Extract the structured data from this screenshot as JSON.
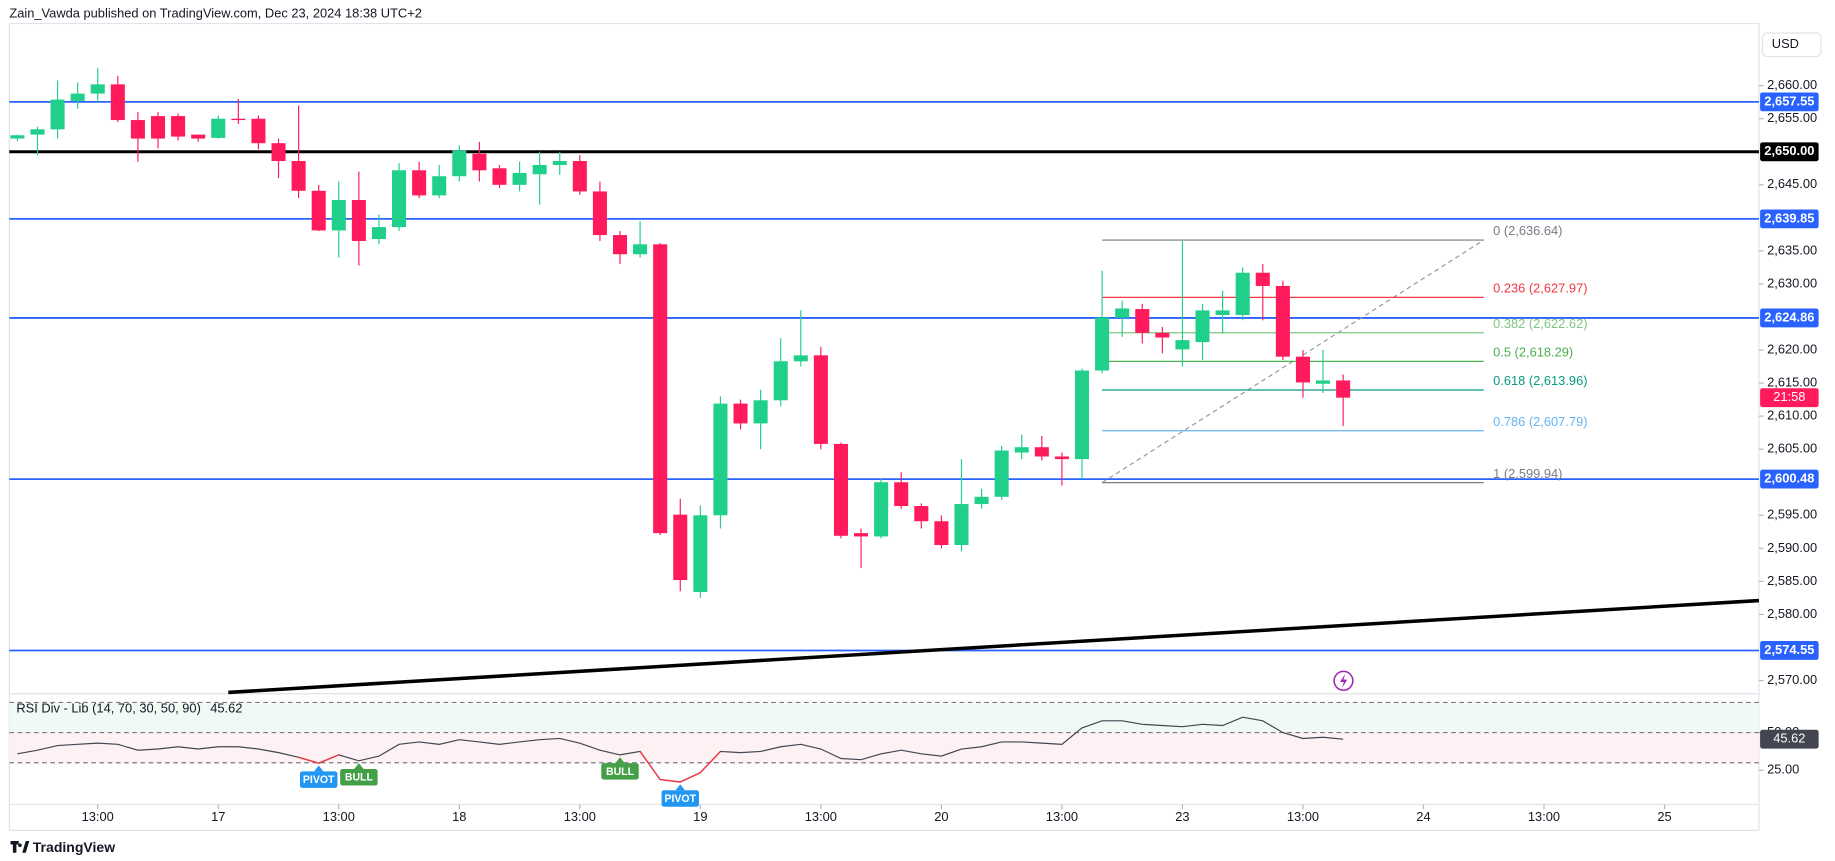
{
  "header": {
    "title": "Zain_Vawda published on TradingView.com, Dec 23, 2024 18:38 UTC+2"
  },
  "footer": {
    "brand": "TradingView"
  },
  "chart_data": [
    {
      "type": "candlestick",
      "currency": "USD",
      "up_color": "#1fcf8a",
      "down_color": "#ff1a5b",
      "open": [
        2652.0,
        2652.6,
        2653.4,
        2657.7,
        2658.8,
        2660.2,
        2654.8,
        2655.4,
        2655.4,
        2652.6,
        2652.1,
        2655.0,
        2655.0,
        2651.3,
        2648.6,
        2644.1,
        2638.1,
        2642.7,
        2636.8,
        2638.6,
        2647.2,
        2643.4,
        2646.3,
        2649.7,
        2647.5,
        2645.0,
        2646.6,
        2648.0,
        2648.6,
        2644.0,
        2637.4,
        2634.5,
        2636.0,
        2595.1,
        2583.4,
        2595.0,
        2611.9,
        2608.9,
        2612.4,
        2618.3,
        2619.2,
        2605.8,
        2592.3,
        2591.8,
        2600.0,
        2596.4,
        2594.1,
        2590.5,
        2596.7,
        2597.8,
        2604.5,
        2605.3,
        2603.9,
        2603.5,
        2616.9,
        2624.9,
        2626.2,
        2622.6,
        2620.1,
        2621.2,
        2625.3,
        2625.3,
        2631.7,
        2629.7,
        2619.0,
        2614.9,
        2615.4
      ],
      "high": [
        2652.6,
        2653.8,
        2660.8,
        2660.5,
        2662.7,
        2661.5,
        2656.0,
        2656.0,
        2655.8,
        2652.6,
        2655.5,
        2658.0,
        2655.5,
        2652.0,
        2657.0,
        2645.0,
        2645.5,
        2647.0,
        2640.5,
        2648.3,
        2648.5,
        2648.0,
        2651.0,
        2651.5,
        2648.0,
        2648.5,
        2650.0,
        2650.0,
        2649.5,
        2645.5,
        2638.0,
        2639.5,
        2636.2,
        2597.5,
        2596.5,
        2613.0,
        2612.5,
        2614.0,
        2621.8,
        2626.0,
        2620.5,
        2606.0,
        2593.0,
        2600.5,
        2601.5,
        2596.8,
        2595.0,
        2603.5,
        2599.0,
        2605.5,
        2607.2,
        2607.0,
        2604.5,
        2617.2,
        2632.0,
        2627.5,
        2627.0,
        2623.5,
        2636.5,
        2627.0,
        2629.0,
        2632.5,
        2633.0,
        2630.5,
        2620.0,
        2620.0,
        2616.3
      ],
      "low": [
        2651.6,
        2649.5,
        2652.0,
        2656.5,
        2657.5,
        2654.5,
        2648.5,
        2650.5,
        2651.7,
        2651.5,
        2652.0,
        2654.2,
        2650.4,
        2646.0,
        2643.0,
        2638.0,
        2634.0,
        2632.8,
        2636.0,
        2638.0,
        2643.0,
        2643.0,
        2645.5,
        2645.5,
        2644.5,
        2644.0,
        2642.0,
        2646.5,
        2643.5,
        2636.5,
        2633.0,
        2634.0,
        2592.0,
        2583.5,
        2582.5,
        2593.0,
        2608.0,
        2605.0,
        2611.5,
        2617.5,
        2605.0,
        2591.5,
        2587.0,
        2591.5,
        2596.0,
        2593.0,
        2590.0,
        2589.5,
        2596.0,
        2597.3,
        2603.5,
        2603.3,
        2599.5,
        2600.5,
        2616.5,
        2622.0,
        2621.0,
        2619.5,
        2617.5,
        2618.5,
        2622.5,
        2624.5,
        2624.5,
        2618.5,
        2612.8,
        2613.5,
        2608.5
      ],
      "close": [
        2652.5,
        2653.4,
        2657.9,
        2658.8,
        2660.2,
        2654.8,
        2652.0,
        2652.0,
        2652.3,
        2652.0,
        2655.0,
        2654.8,
        2651.3,
        2648.6,
        2644.1,
        2638.1,
        2642.7,
        2636.5,
        2638.6,
        2647.2,
        2643.4,
        2646.3,
        2650.2,
        2647.2,
        2645.0,
        2646.8,
        2648.0,
        2648.6,
        2644.0,
        2637.4,
        2634.5,
        2636.0,
        2592.3,
        2585.2,
        2595.0,
        2611.9,
        2608.9,
        2612.4,
        2618.3,
        2619.2,
        2605.8,
        2591.9,
        2591.8,
        2600.0,
        2596.4,
        2594.1,
        2590.5,
        2596.7,
        2597.8,
        2604.8,
        2605.3,
        2603.9,
        2603.5,
        2616.9,
        2624.9,
        2626.3,
        2622.6,
        2621.9,
        2621.5,
        2626.0,
        2626.0,
        2631.7,
        2629.7,
        2619.0,
        2615.1,
        2615.4,
        2612.8
      ],
      "xlim": [
        -0.4,
        86.7
      ],
      "ylim": [
        2568.0,
        2669.4
      ],
      "xticks": [
        {
          "value": 4,
          "label": "13:00"
        },
        {
          "value": 10,
          "label": "17"
        },
        {
          "value": 16,
          "label": "13:00"
        },
        {
          "value": 22,
          "label": "18"
        },
        {
          "value": 28,
          "label": "13:00"
        },
        {
          "value": 34,
          "label": "19"
        },
        {
          "value": 40,
          "label": "13:00"
        },
        {
          "value": 46,
          "label": "20"
        },
        {
          "value": 52,
          "label": "13:00"
        },
        {
          "value": 58,
          "label": "23"
        },
        {
          "value": 64,
          "label": "13:00"
        },
        {
          "value": 70,
          "label": "24"
        },
        {
          "value": 76,
          "label": "13:00"
        },
        {
          "value": 82,
          "label": "25"
        }
      ],
      "yticks": [
        {
          "value": 2660,
          "label": "2,660.00"
        },
        {
          "value": 2655,
          "label": "2,655.00"
        },
        {
          "value": 2645,
          "label": "2,645.00"
        },
        {
          "value": 2635,
          "label": "2,635.00"
        },
        {
          "value": 2630,
          "label": "2,630.00"
        },
        {
          "value": 2620,
          "label": "2,620.00"
        },
        {
          "value": 2615,
          "label": "2,615.00"
        },
        {
          "value": 2610,
          "label": "2,610.00"
        },
        {
          "value": 2605,
          "label": "2,605.00"
        },
        {
          "value": 2595,
          "label": "2,595.00"
        },
        {
          "value": 2590,
          "label": "2,590.00"
        },
        {
          "value": 2585,
          "label": "2,585.00"
        },
        {
          "value": 2580,
          "label": "2,580.00"
        },
        {
          "value": 2570,
          "label": "2,570.00"
        }
      ],
      "levels": [
        {
          "price": 2657.55,
          "label": "2,657.55",
          "color": "#2962ff"
        },
        {
          "price": 2650.0,
          "label": "2,650.00",
          "color": "#000000"
        },
        {
          "price": 2639.85,
          "label": "2,639.85",
          "color": "#2962ff"
        },
        {
          "price": 2624.86,
          "label": "2,624.86",
          "color": "#2962ff"
        },
        {
          "price": 2600.48,
          "label": "2,600.48",
          "color": "#2962ff"
        },
        {
          "price": 2574.55,
          "label": "2,574.55",
          "color": "#2962ff"
        }
      ],
      "trendline": {
        "x": [
          10.5,
          86.7
        ],
        "y": [
          2568.2,
          2582.1
        ],
        "color": "#000000"
      },
      "fib": {
        "x": [
          54,
          73
        ],
        "levels": [
          {
            "price": 2636.64,
            "label": "0 (2,636.64)",
            "color": "#787b86"
          },
          {
            "price": 2627.97,
            "label": "0.236 (2,627.97)",
            "color": "#f23645"
          },
          {
            "price": 2622.62,
            "label": "0.382 (2,622.62)",
            "color": "#81c784"
          },
          {
            "price": 2618.29,
            "label": "0.5 (2,618.29)",
            "color": "#4caf50"
          },
          {
            "price": 2613.96,
            "label": "0.618 (2,613.96)",
            "color": "#089981"
          },
          {
            "price": 2607.79,
            "label": "0.786 (2,607.79)",
            "color": "#64b5f6"
          },
          {
            "price": 2599.94,
            "label": "1 (2,599.94)",
            "color": "#787b86"
          }
        ]
      },
      "countdown": "21:58"
    },
    {
      "type": "line",
      "title": "RSI Div - Lib (14, 70, 30, 50, 90)",
      "current": 45.62,
      "color": "#434651",
      "below_color": "#f23645",
      "values": [
        35.9,
        38.3,
        41.4,
        42.2,
        43.0,
        42.2,
        38.3,
        39.1,
        40.6,
        39.1,
        40.6,
        40.6,
        39.1,
        36.7,
        33.6,
        29.7,
        35.2,
        31.3,
        34.4,
        42.2,
        43.8,
        42.2,
        45.3,
        43.8,
        42.2,
        43.8,
        45.3,
        46.1,
        43.0,
        38.3,
        35.2,
        37.5,
        18.8,
        17.2,
        23.4,
        37.5,
        36.7,
        37.5,
        40.6,
        42.2,
        39.1,
        32.8,
        32.0,
        35.9,
        38.3,
        35.9,
        34.4,
        39.1,
        40.6,
        43.8,
        43.8,
        43.0,
        42.2,
        53.1,
        57.8,
        57.8,
        55.5,
        54.7,
        53.9,
        55.5,
        54.7,
        60.2,
        57.8,
        50.0,
        46.1,
        46.9,
        45.62
      ],
      "ylim": [
        2.3,
        75
      ],
      "yticks": [
        {
          "value": 50,
          "label": "50.00"
        },
        {
          "value": 25,
          "label": "25.00"
        }
      ],
      "levels": [
        70,
        50,
        30
      ],
      "signals": [
        {
          "x": 15,
          "label": "PIVOT",
          "color": "#2196f3"
        },
        {
          "x": 17,
          "label": "BULL",
          "color": "#43a047"
        },
        {
          "x": 30,
          "label": "BULL",
          "color": "#43a047"
        },
        {
          "x": 33,
          "label": "PIVOT",
          "color": "#2196f3"
        }
      ]
    }
  ]
}
